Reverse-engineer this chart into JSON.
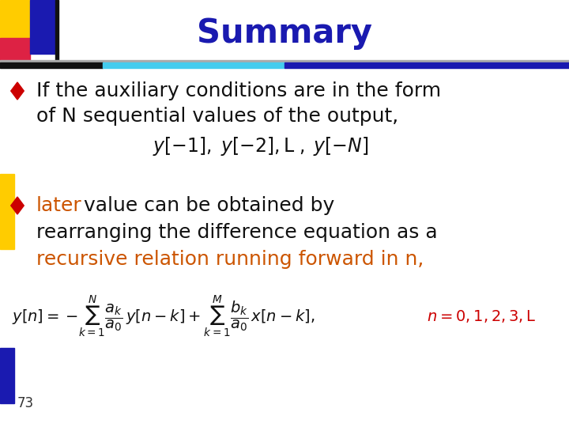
{
  "title": "Summary",
  "title_color": "#1a1ab0",
  "title_fontsize": 30,
  "background_color": "#ffffff",
  "bullet_color": "#cc0000",
  "bullet1_line1": "If the auxiliary conditions are in the form",
  "bullet1_line2": "of N sequential values of the output,",
  "bullet2_orange": "later",
  "bullet2_rest": " value can be obtained by",
  "bullet2_line2": "rearranging the difference equation as a",
  "bullet2_line3": "recursive relation running forward in n,",
  "page_number": "73",
  "orange_color": "#cc5500",
  "red_formula_color": "#cc0000",
  "text_color": "#111111",
  "text_fontsize": 18,
  "formula1_fontsize": 16,
  "formula2_fontsize": 14
}
